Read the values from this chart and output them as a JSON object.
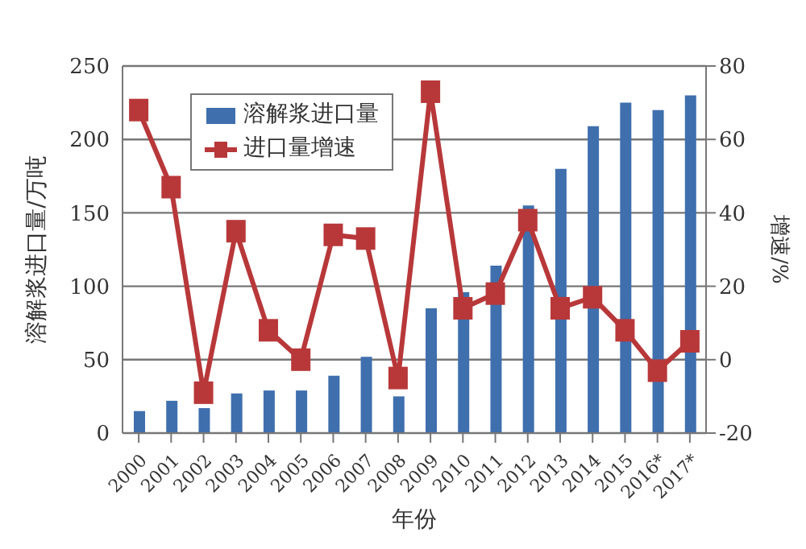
{
  "chart_data": {
    "type": "bar",
    "xlabel": "年份",
    "ylabel": "溶解浆进口量/万吨",
    "y2label": "增速/%",
    "categories": [
      "2000",
      "2001",
      "2002",
      "2003",
      "2004",
      "2005",
      "2006",
      "2007",
      "2008",
      "2009",
      "2010",
      "2011",
      "2012",
      "2013",
      "2014",
      "2015",
      "2016*",
      "2017*"
    ],
    "series": [
      {
        "name": "溶解浆进口量",
        "color": "#3f6fad",
        "values": [
          15,
          22,
          17,
          27,
          29,
          29,
          39,
          52,
          25,
          85,
          96,
          114,
          155,
          180,
          209,
          225,
          220,
          230
        ]
      },
      {
        "name": "进口量增速",
        "type": "line",
        "axis": "y2",
        "color": "#b8383a",
        "values": [
          68,
          47,
          -9,
          35,
          8,
          0,
          34,
          33,
          -5,
          73,
          14,
          18,
          38,
          14,
          17,
          8,
          -3,
          5
        ]
      }
    ],
    "ylim": [
      0,
      250
    ],
    "yticks": [
      0,
      50,
      100,
      150,
      200,
      250
    ],
    "y2lim": [
      -20,
      80
    ],
    "y2ticks": [
      -20,
      0,
      20,
      40,
      60,
      80
    ],
    "grid": "y",
    "legend": "top left",
    "marker": "square",
    "line_style": "solid"
  }
}
